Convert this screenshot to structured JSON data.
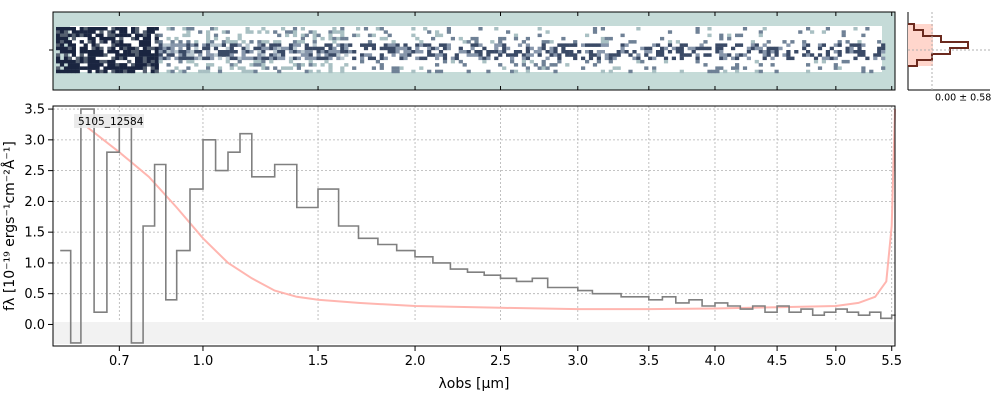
{
  "figure": {
    "object_id": "5105_12584",
    "hist_annotation": "0.00 ± 0.58"
  },
  "colors": {
    "spectrum": "#808080",
    "error": "#ffb6b0",
    "spec2d_background": "#c5dbd8",
    "spec2d_dark": "#1a2540",
    "hist_line": "#6b2a1e",
    "hist_fill": "#ffd6cc",
    "grid": "#b0b0b0"
  },
  "chart_data": [
    {
      "type": "heatmap",
      "description_kind": "2D spectrum image",
      "x_range_um": [
        0.5,
        5.55
      ],
      "trace_rows": "bright trace near center row"
    },
    {
      "type": "bar",
      "name": "pixel histogram",
      "orientation": "horizontal",
      "annotation": "0.00 ± 0.58",
      "values": [
        0.1,
        0.25,
        0.55,
        1.0,
        0.7,
        0.4,
        0.15
      ]
    },
    {
      "type": "line",
      "title": "",
      "label": "5105_12584",
      "xlabel": "λobs [μm]",
      "ylabel": "fλ [10⁻¹⁹ ergs⁻¹cm⁻²Å⁻¹]",
      "xscale": "sqrt-like",
      "xlim": [
        0.5,
        5.53
      ],
      "ylim": [
        -0.35,
        3.55
      ],
      "xticks": [
        0.7,
        1.0,
        1.5,
        2.0,
        2.5,
        3.0,
        3.5,
        4.0,
        4.5,
        5.0,
        5.5
      ],
      "xtick_labels": [
        "0.7",
        "1.0",
        "1.5",
        "2.0",
        "2.5",
        "3.0",
        "3.5",
        "4.0",
        "4.5",
        "5.0",
        "5.5"
      ],
      "yticks": [
        0.0,
        0.5,
        1.0,
        1.5,
        2.0,
        2.5,
        3.0,
        3.5
      ],
      "ytick_labels": [
        "0.0",
        "0.5",
        "1.0",
        "1.5",
        "2.0",
        "2.5",
        "3.0",
        "3.5"
      ],
      "grid": true,
      "series": [
        {
          "kind": "flux",
          "x": [
            0.52,
            0.55,
            0.58,
            0.62,
            0.66,
            0.7,
            0.74,
            0.78,
            0.82,
            0.86,
            0.9,
            0.95,
            1.0,
            1.05,
            1.1,
            1.15,
            1.2,
            1.3,
            1.4,
            1.5,
            1.6,
            1.7,
            1.8,
            1.9,
            2.0,
            2.1,
            2.2,
            2.3,
            2.4,
            2.5,
            2.6,
            2.7,
            2.8,
            2.9,
            3.0,
            3.1,
            3.2,
            3.3,
            3.4,
            3.5,
            3.6,
            3.7,
            3.8,
            3.9,
            4.0,
            4.1,
            4.2,
            4.3,
            4.4,
            4.5,
            4.6,
            4.7,
            4.8,
            4.9,
            5.0,
            5.1,
            5.2,
            5.3,
            5.4,
            5.5
          ],
          "y": [
            1.2,
            -0.3,
            3.5,
            0.2,
            2.8,
            3.4,
            -0.3,
            1.6,
            2.6,
            0.4,
            1.2,
            2.2,
            3.0,
            2.5,
            2.8,
            3.1,
            2.4,
            2.6,
            1.9,
            2.2,
            1.6,
            1.4,
            1.3,
            1.2,
            1.1,
            1.0,
            0.9,
            0.85,
            0.8,
            0.75,
            0.7,
            0.75,
            0.6,
            0.6,
            0.55,
            0.5,
            0.5,
            0.45,
            0.45,
            0.4,
            0.45,
            0.35,
            0.4,
            0.3,
            0.35,
            0.3,
            0.25,
            0.3,
            0.2,
            0.3,
            0.2,
            0.25,
            0.15,
            0.2,
            0.25,
            0.2,
            0.15,
            0.2,
            0.1,
            0.15
          ]
        },
        {
          "kind": "error",
          "x": [
            0.6,
            0.7,
            0.8,
            0.9,
            1.0,
            1.1,
            1.2,
            1.3,
            1.4,
            1.5,
            1.7,
            2.0,
            2.5,
            3.0,
            3.5,
            4.0,
            4.5,
            5.0,
            5.2,
            5.35,
            5.45,
            5.5,
            5.53
          ],
          "y": [
            3.2,
            2.8,
            2.4,
            1.9,
            1.4,
            1.0,
            0.75,
            0.55,
            0.45,
            0.4,
            0.35,
            0.3,
            0.27,
            0.25,
            0.25,
            0.26,
            0.28,
            0.3,
            0.35,
            0.45,
            0.7,
            1.6,
            3.5
          ]
        }
      ]
    }
  ]
}
